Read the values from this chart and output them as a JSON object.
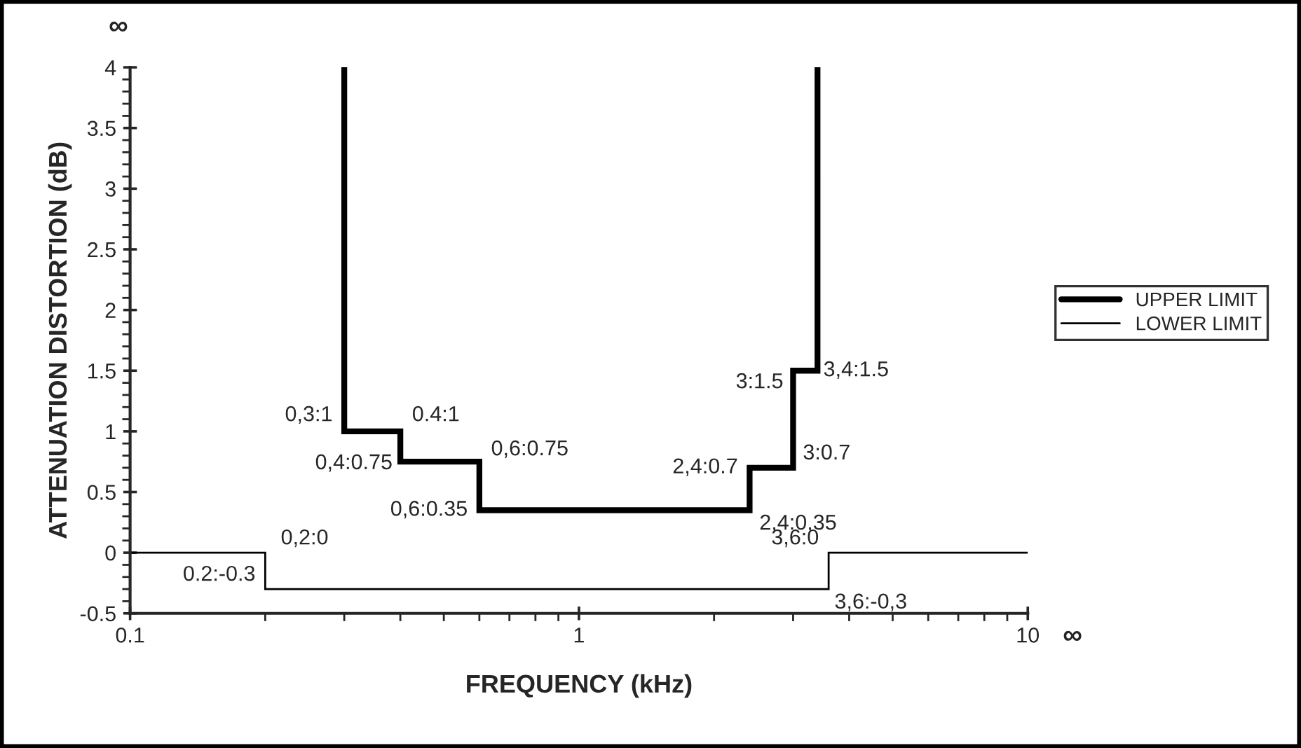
{
  "chart_data": {
    "type": "line",
    "xlabel": "FREQUENCY (kHz)",
    "ylabel": "ATTENUATION DISTORTION (dB)",
    "log": "x",
    "xlim": [
      0.1,
      10
    ],
    "xticks": [
      0.1,
      1,
      10
    ],
    "ylim": [
      -0.5,
      4
    ],
    "yticks": [
      -0.5,
      0,
      0.5,
      1,
      1.5,
      2,
      2.5,
      3,
      3.5,
      4
    ],
    "grid": false,
    "legend": "right",
    "line_style": "solid",
    "series": [
      {
        "name": "UPPER LIMIT",
        "color": "#000000",
        "x": [
          0.3,
          0.3,
          0.4,
          0.4,
          0.6,
          0.6,
          2.4,
          2.4,
          3,
          3,
          3.4,
          3.4
        ],
        "values": [
          4,
          1,
          1,
          0.75,
          0.75,
          0.35,
          0.35,
          0.7,
          0.7,
          1.5,
          1.5,
          4
        ]
      },
      {
        "name": "LOWER LIMIT",
        "color": "#000000",
        "x": [
          0.1,
          0.2,
          0.2,
          3.6,
          3.6,
          10
        ],
        "values": [
          0,
          0,
          -0.3,
          -0.3,
          0,
          0
        ]
      }
    ],
    "annotations": [
      {
        "text": "0,3:1",
        "x": 0.3,
        "y": 1
      },
      {
        "text": "0.4:1",
        "x": 0.4,
        "y": 1
      },
      {
        "text": "0,4:0.75",
        "x": 0.4,
        "y": 0.75
      },
      {
        "text": "0,6:0.75",
        "x": 0.6,
        "y": 0.75
      },
      {
        "text": "0,6:0.35",
        "x": 0.6,
        "y": 0.35
      },
      {
        "text": "2,4:0.7",
        "x": 2.4,
        "y": 0.7
      },
      {
        "text": "2,4:0,35",
        "x": 2.4,
        "y": 0.35
      },
      {
        "text": "3:0.7",
        "x": 3,
        "y": 0.7
      },
      {
        "text": "3:1.5",
        "x": 3,
        "y": 1.5
      },
      {
        "text": "3,4:1.5",
        "x": 3.4,
        "y": 1.5
      },
      {
        "text": "0,2:0",
        "x": 0.2,
        "y": 0
      },
      {
        "text": "0.2:-0.3",
        "x": 0.2,
        "y": -0.3
      },
      {
        "text": "3,6:0",
        "x": 3.6,
        "y": 0
      },
      {
        "text": "3,6:-0,3",
        "x": 3.6,
        "y": -0.3
      },
      "∞",
      "∞"
    ]
  }
}
